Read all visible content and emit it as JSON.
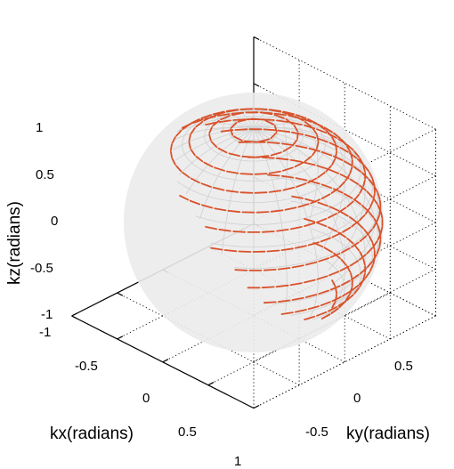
{
  "chart_data": {
    "type": "scatter",
    "subtype": "3d-sphere-direction-field",
    "xlabel": "kx(radians)",
    "ylabel": "ky(radians)",
    "zlabel": "kz(radians)",
    "xlim": [
      -1,
      1
    ],
    "ylim": [
      -1,
      1
    ],
    "zlim": [
      -1,
      1
    ],
    "x_ticks": [
      "-1",
      "-0.5",
      "0",
      "0.5",
      "1"
    ],
    "y_ticks": [
      "-0.5",
      "0",
      "0.5"
    ],
    "z_ticks": [
      "-1",
      "-0.5",
      "0",
      "0.5",
      "1"
    ],
    "grid": true,
    "sphere": {
      "radius": 1,
      "center": [
        0,
        0,
        0
      ],
      "latitude_rings": 16,
      "longitude_lines": 24,
      "surface_color": "#ebebeb",
      "mesh_color": "#d0d0d0"
    },
    "vector_field": {
      "description": "tangential arrows along latitude circles",
      "color": "#d9522b"
    }
  }
}
